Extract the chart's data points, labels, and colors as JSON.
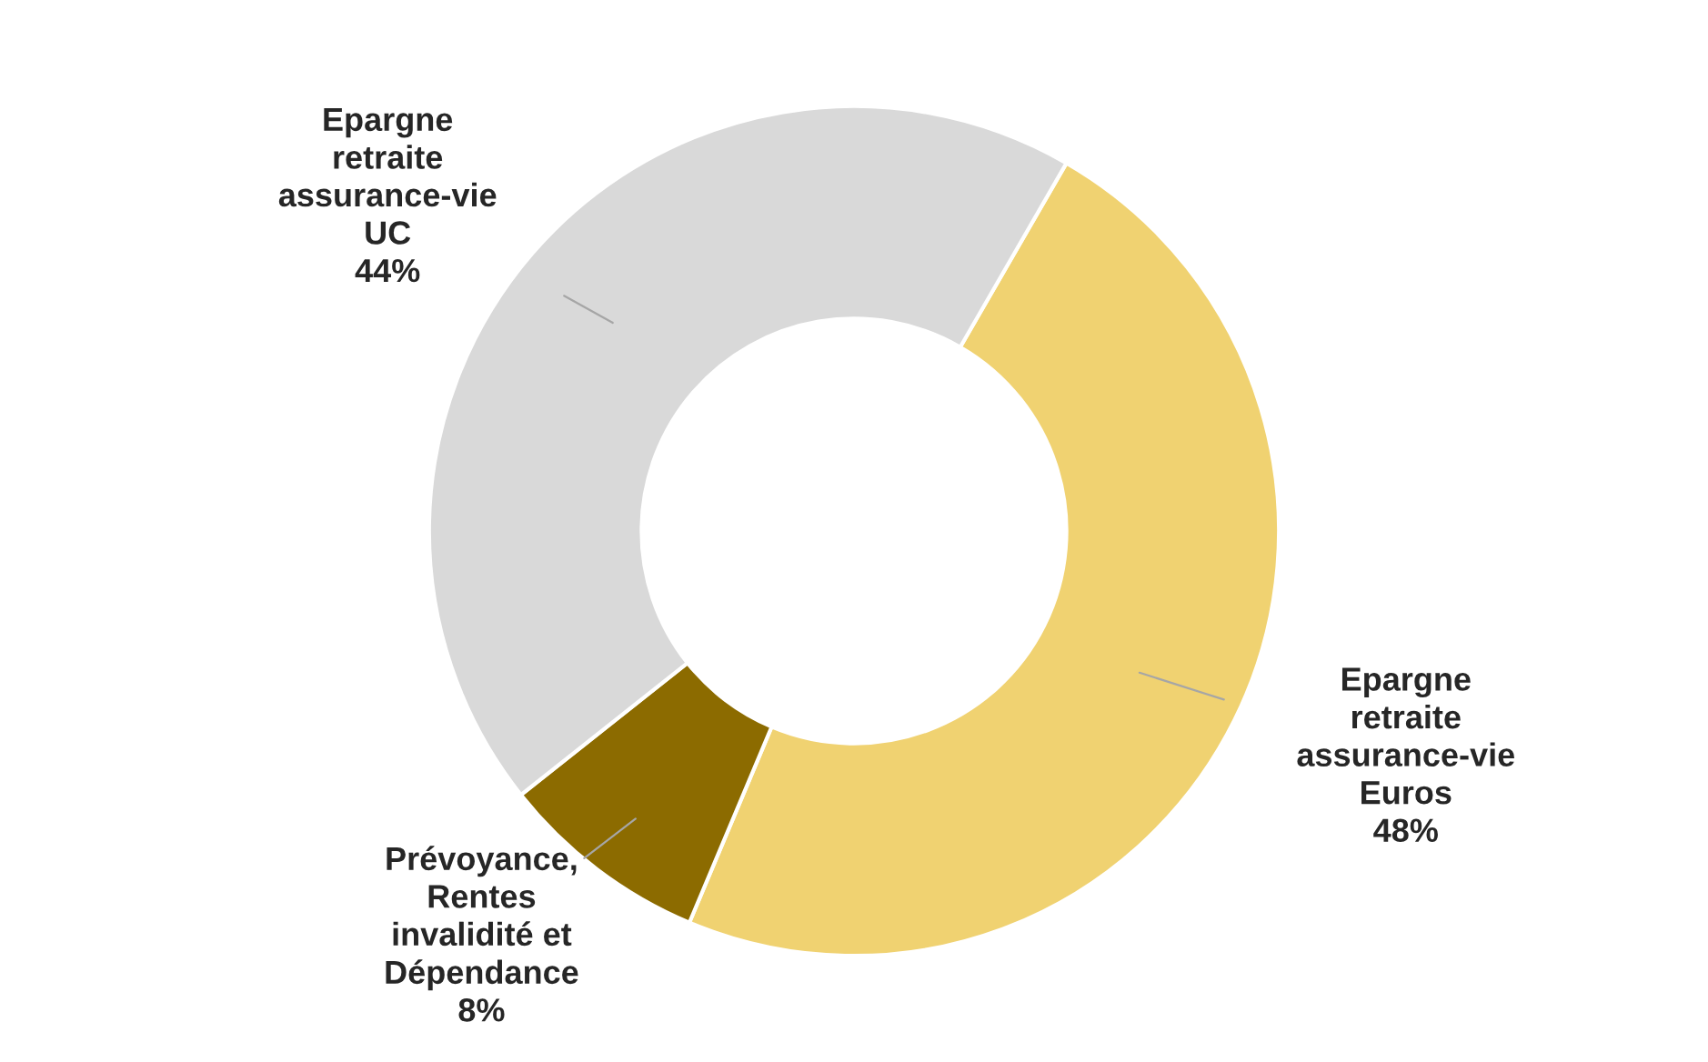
{
  "chart_data": {
    "type": "donut",
    "categories": [
      "Epargne\nretraite\nassurance-vie\nEuros",
      "Prévoyance,\nRentes\ninvalidité et\nDépendance",
      "Epargne\nretraite\nassurance-vie\nUC"
    ],
    "values": [
      48,
      8,
      44
    ],
    "colors": [
      "#f0d271",
      "#8c6b00",
      "#d9d9d9"
    ],
    "value_labels": [
      "48%",
      "8%",
      "44%"
    ],
    "legend": false
  }
}
